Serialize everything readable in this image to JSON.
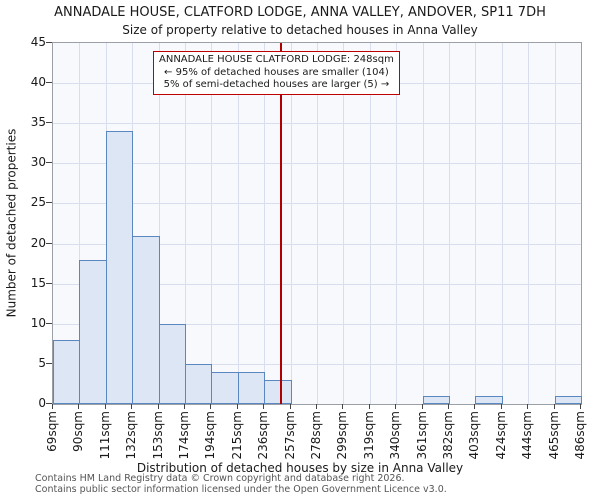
{
  "title": "ANNADALE HOUSE, CLATFORD LODGE, ANNA VALLEY, ANDOVER, SP11 7DH",
  "subtitle": "Size of property relative to detached houses in Anna Valley",
  "y_axis_label": "Number of detached properties",
  "x_axis_label": "Distribution of detached houses by size in Anna Valley",
  "annotation": {
    "line1": "ANNADALE HOUSE CLATFORD LODGE: 248sqm",
    "line2": "← 95% of detached houses are smaller (104)",
    "line3": "5% of semi-detached houses are larger (5) →"
  },
  "footer": {
    "line1": "Contains HM Land Registry data © Crown copyright and database right 2026.",
    "line2": "Contains public sector information licensed under the Open Government Licence v3.0."
  },
  "chart_data": {
    "type": "bar",
    "title": "ANNADALE HOUSE, CLATFORD LODGE, ANNA VALLEY, ANDOVER, SP11 7DH",
    "subtitle": "Size of property relative to detached houses in Anna Valley",
    "xlabel": "Distribution of detached houses by size in Anna Valley",
    "ylabel": "Number of detached properties",
    "bin_edges_labels": [
      "69sqm",
      "90sqm",
      "111sqm",
      "132sqm",
      "153sqm",
      "174sqm",
      "194sqm",
      "215sqm",
      "236sqm",
      "257sqm",
      "278sqm",
      "299sqm",
      "319sqm",
      "340sqm",
      "361sqm",
      "382sqm",
      "403sqm",
      "424sqm",
      "444sqm",
      "465sqm",
      "486sqm"
    ],
    "values": [
      8,
      18,
      34,
      21,
      10,
      5,
      4,
      4,
      3,
      0,
      0,
      0,
      0,
      0,
      1,
      0,
      1,
      0,
      0,
      1
    ],
    "marker_value_sqm": 248,
    "x_range_sqm": [
      69,
      486
    ],
    "ylim": [
      0,
      45
    ],
    "ytick_step": 5,
    "grid": true,
    "colors": {
      "bar_fill": "#dce6f5",
      "bar_border": "#5b87c0",
      "marker_line": "#b00000",
      "annotation_border": "#c00000",
      "grid": "#d8deee"
    }
  }
}
